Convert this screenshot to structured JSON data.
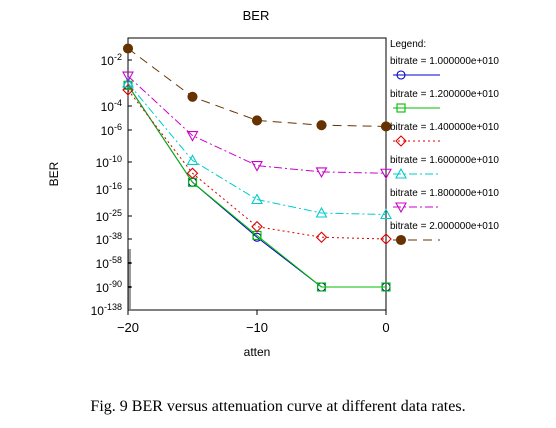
{
  "chart_data": {
    "type": "line",
    "title": "BER",
    "xlabel": "atten",
    "ylabel": "BER",
    "x_ticks": [
      -20,
      -10,
      0
    ],
    "xlim": [
      -20,
      0
    ],
    "y_scale": "log",
    "y_ticks": [
      {
        "exp": -2,
        "label": "10",
        "sup": "-2"
      },
      {
        "exp": -4,
        "label": "10",
        "sup": "-4"
      },
      {
        "exp": -6,
        "label": "10",
        "sup": "-6"
      },
      {
        "exp": -10,
        "label": "10",
        "sup": "-10"
      },
      {
        "exp": -16,
        "label": "10",
        "sup": "-16"
      },
      {
        "exp": -25,
        "label": "10",
        "sup": "-25"
      },
      {
        "exp": -38,
        "label": "10",
        "sup": "-38"
      },
      {
        "exp": -58,
        "label": "10",
        "sup": "-58"
      },
      {
        "exp": -90,
        "label": "10",
        "sup": "-90"
      },
      {
        "exp": -138,
        "label": "10",
        "sup": "-138"
      }
    ],
    "legend": {
      "title": "Legend:",
      "position": "right"
    },
    "x": [
      -20,
      -15,
      -10,
      -5,
      0
    ],
    "series": [
      {
        "name": "bitrate = 1.000000e+010",
        "color": "#0000cc",
        "marker": "circle",
        "dash": "solid",
        "values_exp": [
          -3.1,
          -14.5,
          -37,
          -90,
          -90
        ]
      },
      {
        "name": "bitrate = 1.200000e+010",
        "color": "#00bb00",
        "marker": "square",
        "dash": "solid",
        "values_exp": [
          -3.1,
          -14.5,
          -36,
          -90,
          -90
        ]
      },
      {
        "name": "bitrate = 1.400000e+010",
        "color": "#dd0000",
        "marker": "diamond",
        "dash": "dot",
        "values_exp": [
          -3.3,
          -12.5,
          -31,
          -37,
          -38
        ]
      },
      {
        "name": "bitrate = 1.600000e+010",
        "color": "#00cccc",
        "marker": "triangle-up",
        "dash": "dashdot",
        "values_exp": [
          -3.0,
          -9.8,
          -19.5,
          -24,
          -24.5
        ]
      },
      {
        "name": "bitrate = 1.800000e+010",
        "color": "#cc00cc",
        "marker": "triangle-down",
        "dash": "dashdot",
        "values_exp": [
          -2.7,
          -6.7,
          -10.8,
          -12.2,
          -12.5
        ]
      },
      {
        "name": "bitrate = 2.000000e+010",
        "color": "#663300",
        "marker": "filled-circle",
        "dash": "dash",
        "values_exp": [
          -1.5,
          -3.6,
          -5.2,
          -5.6,
          -5.7
        ]
      }
    ]
  },
  "caption": "Fig. 9 BER versus attenuation curve at different data rates."
}
